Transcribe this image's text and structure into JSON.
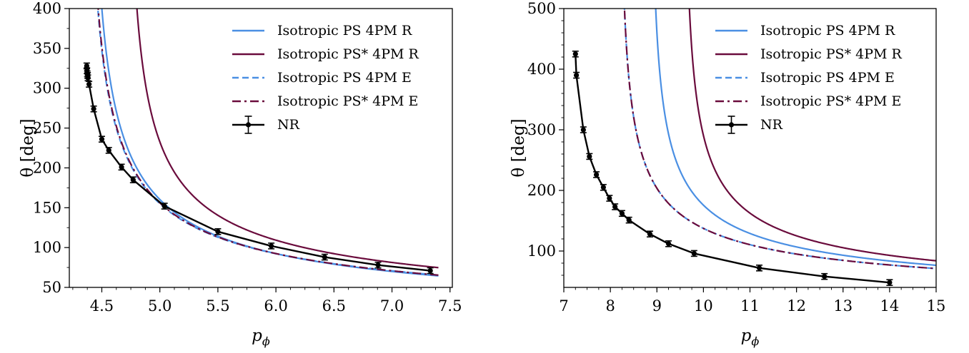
{
  "colors": {
    "blue": "#4a8fe3",
    "purple": "#6a0b3c",
    "black": "#000000"
  },
  "chart_data": [
    {
      "type": "line",
      "xlabel": "p",
      "xlabel_sub": "ϕ",
      "ylabel": "θ [deg]",
      "xlim": [
        4.22,
        7.52
      ],
      "ylim": [
        50,
        400
      ],
      "xticks": [
        "4.5",
        "5.0",
        "5.5",
        "6.0",
        "6.5",
        "7.0",
        "7.5"
      ],
      "xtick_values": [
        4.5,
        5.0,
        5.5,
        6.0,
        6.5,
        7.0,
        7.5
      ],
      "yticks": [
        "50",
        "100",
        "150",
        "200",
        "250",
        "300",
        "350",
        "400"
      ],
      "ytick_values": [
        50,
        100,
        150,
        200,
        250,
        300,
        350,
        400
      ],
      "legend_position": "top-right",
      "series": [
        {
          "name": "Isotropic PS 4PM R",
          "style": "solid",
          "color": "#4a8fe3",
          "model": {
            "a": 122.65,
            "b": 4.37,
            "p": 0.58,
            "xmax": 7.4
          }
        },
        {
          "name": "Isotropic PS* 4PM R",
          "style": "solid",
          "color": "#6a0b3c",
          "model": {
            "a": 125.5,
            "b": 4.695,
            "p": 0.52,
            "xmax": 7.4
          }
        },
        {
          "name": "Isotropic PS 4PM E",
          "style": "dashed",
          "color": "#4a8fe3",
          "model": {
            "a": 122.4,
            "b": 4.345,
            "p": 0.56,
            "xmax": 7.4
          }
        },
        {
          "name": "Isotropic PS* 4PM E",
          "style": "dashdot",
          "color": "#6a0b3c",
          "model": {
            "a": 122.9,
            "b": 4.345,
            "p": 0.565,
            "xmax": 7.4
          }
        },
        {
          "name": "NR",
          "style": "errorbar",
          "color": "#000000",
          "x": [
            4.37,
            4.372,
            4.375,
            4.378,
            4.38,
            4.39,
            4.43,
            4.5,
            4.56,
            4.67,
            4.77,
            5.04,
            5.5,
            5.96,
            6.42,
            6.88,
            7.33
          ],
          "y": [
            328,
            322,
            318,
            316,
            313,
            305,
            274,
            236,
            222,
            201,
            185,
            152,
            120,
            102,
            88,
            78,
            71
          ]
        }
      ]
    },
    {
      "type": "line",
      "xlabel": "p",
      "xlabel_sub": "ϕ",
      "ylabel": "θ [deg]",
      "xlim": [
        7,
        15
      ],
      "ylim": [
        40,
        500
      ],
      "xticks": [
        "7",
        "8",
        "9",
        "10",
        "11",
        "12",
        "13",
        "14",
        "15"
      ],
      "xtick_values": [
        7,
        8,
        9,
        10,
        11,
        12,
        13,
        14,
        15
      ],
      "yticks": [
        "100",
        "200",
        "300",
        "400",
        "500"
      ],
      "ytick_values": [
        100,
        200,
        300,
        400,
        500
      ],
      "legend_position": "top-right",
      "series": [
        {
          "name": "Isotropic PS 4PM R",
          "style": "solid",
          "color": "#4a8fe3",
          "model": {
            "a": 190,
            "b": 8.83,
            "p": 0.5,
            "xmin": 8.851,
            "xmax": 15
          }
        },
        {
          "name": "Isotropic PS* 4PM R",
          "style": "solid",
          "color": "#6a0b3c",
          "model": {
            "a": 196,
            "b": 9.545,
            "p": 0.5,
            "xmin": 9.5575,
            "xmax": 15
          }
        },
        {
          "name": "Isotropic PS 4PM E",
          "style": "dashed",
          "color": "#4a8fe3",
          "model": {
            "a": 186,
            "b": 8.165,
            "p": 0.5,
            "xmin": 8.1745,
            "xmax": 15
          }
        },
        {
          "name": "Isotropic PS* 4PM E",
          "style": "dashdot",
          "color": "#6a0b3c",
          "model": {
            "a": 186,
            "b": 8.165,
            "p": 0.5,
            "xmin": 8.1745,
            "xmax": 15
          }
        },
        {
          "name": "NR",
          "style": "errorbar",
          "color": "#000000",
          "x": [
            7.25,
            7.27,
            7.42,
            7.55,
            7.7,
            7.85,
            7.98,
            8.1,
            8.25,
            8.4,
            8.85,
            9.25,
            9.8,
            11.2,
            12.6,
            14.0
          ],
          "y": [
            425,
            390,
            300,
            256,
            226,
            205,
            187,
            173,
            162,
            151,
            128,
            112,
            96,
            72,
            58,
            48
          ]
        }
      ]
    }
  ]
}
